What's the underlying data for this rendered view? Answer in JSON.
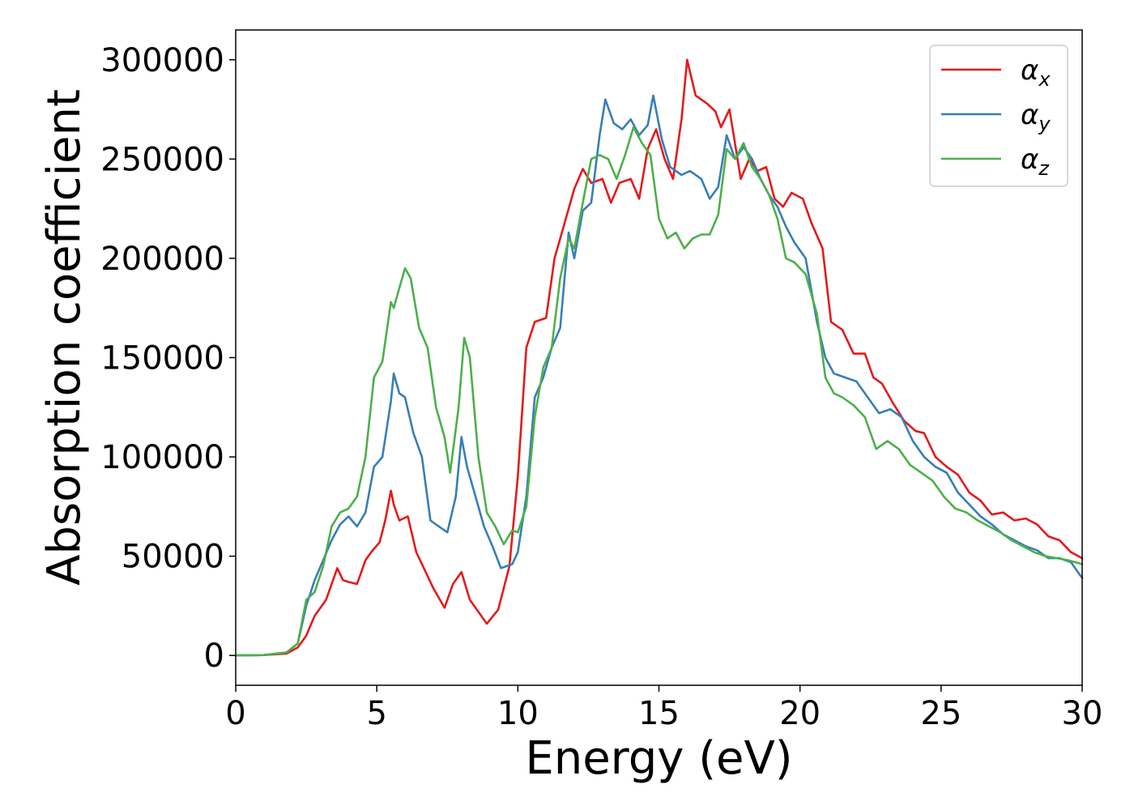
{
  "chart_data": {
    "type": "line",
    "xlabel": "Energy (eV)",
    "ylabel": "Absorption coefficient",
    "xlim": [
      0,
      30
    ],
    "ylim": [
      -15000,
      315000
    ],
    "xticks": [
      0,
      5,
      10,
      15,
      20,
      25,
      30
    ],
    "yticks": [
      0,
      50000,
      100000,
      150000,
      200000,
      250000,
      300000
    ],
    "grid": false,
    "legend_position": "top-right",
    "series": [
      {
        "name": "α_x",
        "name_base": "α",
        "name_sub": "x",
        "color": "#e41a1c",
        "x": [
          0,
          1,
          1.8,
          2.2,
          2.5,
          2.8,
          3.2,
          3.6,
          3.8,
          4.0,
          4.3,
          4.6,
          4.8,
          5.1,
          5.3,
          5.5,
          5.6,
          5.8,
          6.1,
          6.4,
          6.8,
          7.0,
          7.4,
          7.7,
          8.0,
          8.3,
          8.6,
          8.9,
          9.3,
          9.7,
          10.0,
          10.3,
          10.6,
          11.0,
          11.3,
          11.6,
          12.0,
          12.3,
          12.6,
          13.0,
          13.3,
          13.6,
          14.0,
          14.3,
          14.6,
          14.9,
          15.2,
          15.5,
          15.8,
          16.0,
          16.3,
          16.7,
          17.0,
          17.2,
          17.5,
          17.9,
          18.2,
          18.5,
          18.8,
          19.1,
          19.4,
          19.7,
          20.1,
          20.4,
          20.8,
          21.1,
          21.5,
          21.9,
          22.3,
          22.6,
          22.9,
          23.3,
          23.7,
          24.1,
          24.4,
          24.8,
          25.2,
          25.6,
          26.0,
          26.4,
          26.8,
          27.2,
          27.6,
          28.0,
          28.4,
          28.8,
          29.2,
          29.6,
          30.0
        ],
        "y": [
          0,
          200,
          1000,
          4000,
          10000,
          20000,
          28000,
          44000,
          38000,
          37000,
          36000,
          48000,
          52000,
          57000,
          68000,
          83000,
          76000,
          68000,
          70000,
          52000,
          40000,
          34000,
          24000,
          36000,
          42000,
          28000,
          22000,
          16000,
          23000,
          45000,
          90000,
          155000,
          168000,
          170000,
          200000,
          215000,
          235000,
          245000,
          238000,
          240000,
          228000,
          238000,
          240000,
          230000,
          255000,
          265000,
          250000,
          240000,
          270000,
          300000,
          282000,
          278000,
          274000,
          266000,
          275000,
          240000,
          250000,
          244000,
          246000,
          230000,
          226000,
          233000,
          230000,
          218000,
          205000,
          168000,
          164000,
          152000,
          152000,
          140000,
          137000,
          127000,
          118000,
          113000,
          112000,
          100000,
          95000,
          91000,
          82000,
          78000,
          71000,
          72000,
          68000,
          69000,
          66000,
          60000,
          58000,
          52000,
          49000
        ]
      },
      {
        "name": "α_y",
        "name_base": "α",
        "name_sub": "y",
        "color": "#377eb8",
        "x": [
          0,
          1,
          1.8,
          2.2,
          2.5,
          2.8,
          3.1,
          3.4,
          3.7,
          4.0,
          4.3,
          4.6,
          4.9,
          5.2,
          5.5,
          5.6,
          5.8,
          6.0,
          6.3,
          6.6,
          6.9,
          7.2,
          7.5,
          7.8,
          8.0,
          8.2,
          8.5,
          8.8,
          9.1,
          9.4,
          9.8,
          10.0,
          10.3,
          10.6,
          10.9,
          11.2,
          11.5,
          11.8,
          12.0,
          12.3,
          12.6,
          12.9,
          13.1,
          13.4,
          13.7,
          14.0,
          14.3,
          14.6,
          14.8,
          15.1,
          15.4,
          15.8,
          16.1,
          16.5,
          16.8,
          17.1,
          17.4,
          17.7,
          18.0,
          18.3,
          18.6,
          18.9,
          19.2,
          19.5,
          19.8,
          20.2,
          20.6,
          20.9,
          21.2,
          21.6,
          22.0,
          22.4,
          22.8,
          23.2,
          23.6,
          24.0,
          24.4,
          24.8,
          25.2,
          25.6,
          26.0,
          26.4,
          26.8,
          27.2,
          27.6,
          28.0,
          28.4,
          28.8,
          29.2,
          29.6,
          30.0
        ],
        "y": [
          0,
          200,
          1500,
          6000,
          25000,
          38000,
          48000,
          58000,
          66000,
          70000,
          65000,
          72000,
          95000,
          100000,
          128000,
          142000,
          132000,
          130000,
          112000,
          100000,
          68000,
          65000,
          62000,
          80000,
          110000,
          95000,
          80000,
          65000,
          55000,
          44000,
          46000,
          52000,
          80000,
          130000,
          140000,
          155000,
          165000,
          213000,
          200000,
          224000,
          228000,
          262000,
          280000,
          268000,
          265000,
          270000,
          262000,
          267000,
          282000,
          260000,
          246000,
          242000,
          244000,
          240000,
          230000,
          236000,
          262000,
          250000,
          256000,
          250000,
          240000,
          232000,
          226000,
          216000,
          208000,
          200000,
          168000,
          150000,
          142000,
          140000,
          138000,
          130000,
          122000,
          124000,
          120000,
          108000,
          100000,
          95000,
          92000,
          82000,
          76000,
          70000,
          66000,
          61000,
          58000,
          55000,
          53000,
          49000,
          49000,
          47000,
          39000
        ]
      },
      {
        "name": "α_z",
        "name_base": "α",
        "name_sub": "z",
        "color": "#4daf4a",
        "x": [
          0,
          1,
          1.8,
          2.2,
          2.5,
          2.8,
          3.1,
          3.4,
          3.7,
          4.0,
          4.3,
          4.6,
          4.9,
          5.2,
          5.5,
          5.6,
          5.8,
          6.0,
          6.2,
          6.5,
          6.8,
          7.1,
          7.4,
          7.6,
          7.9,
          8.1,
          8.3,
          8.6,
          8.9,
          9.2,
          9.5,
          9.8,
          10.0,
          10.3,
          10.6,
          10.9,
          11.2,
          11.5,
          11.8,
          12.0,
          12.3,
          12.6,
          12.9,
          13.2,
          13.5,
          13.8,
          14.1,
          14.4,
          14.7,
          15.0,
          15.3,
          15.6,
          15.9,
          16.2,
          16.5,
          16.8,
          17.1,
          17.4,
          17.7,
          18.0,
          18.3,
          18.6,
          18.9,
          19.2,
          19.5,
          19.8,
          20.2,
          20.6,
          20.9,
          21.2,
          21.5,
          21.9,
          22.3,
          22.7,
          23.1,
          23.5,
          23.9,
          24.3,
          24.7,
          25.1,
          25.5,
          25.9,
          26.3,
          26.7,
          27.1,
          27.5,
          27.9,
          28.3,
          28.7,
          29.1,
          29.5,
          30.0
        ],
        "y": [
          0,
          200,
          1500,
          6000,
          28000,
          32000,
          45000,
          65000,
          72000,
          74000,
          80000,
          100000,
          140000,
          148000,
          178000,
          175000,
          185000,
          195000,
          190000,
          165000,
          155000,
          125000,
          110000,
          92000,
          125000,
          160000,
          150000,
          100000,
          72000,
          65000,
          56000,
          63000,
          62000,
          75000,
          120000,
          145000,
          155000,
          190000,
          210000,
          205000,
          228000,
          250000,
          252000,
          250000,
          240000,
          252000,
          266000,
          258000,
          252000,
          220000,
          210000,
          213000,
          205000,
          210000,
          212000,
          212000,
          222000,
          255000,
          250000,
          258000,
          246000,
          240000,
          232000,
          220000,
          200000,
          198000,
          192000,
          172000,
          140000,
          132000,
          130000,
          126000,
          120000,
          104000,
          108000,
          104000,
          96000,
          92000,
          88000,
          80000,
          74000,
          72000,
          68000,
          65000,
          62000,
          58000,
          55000,
          52000,
          50000,
          49000,
          48000,
          46000
        ]
      }
    ]
  }
}
